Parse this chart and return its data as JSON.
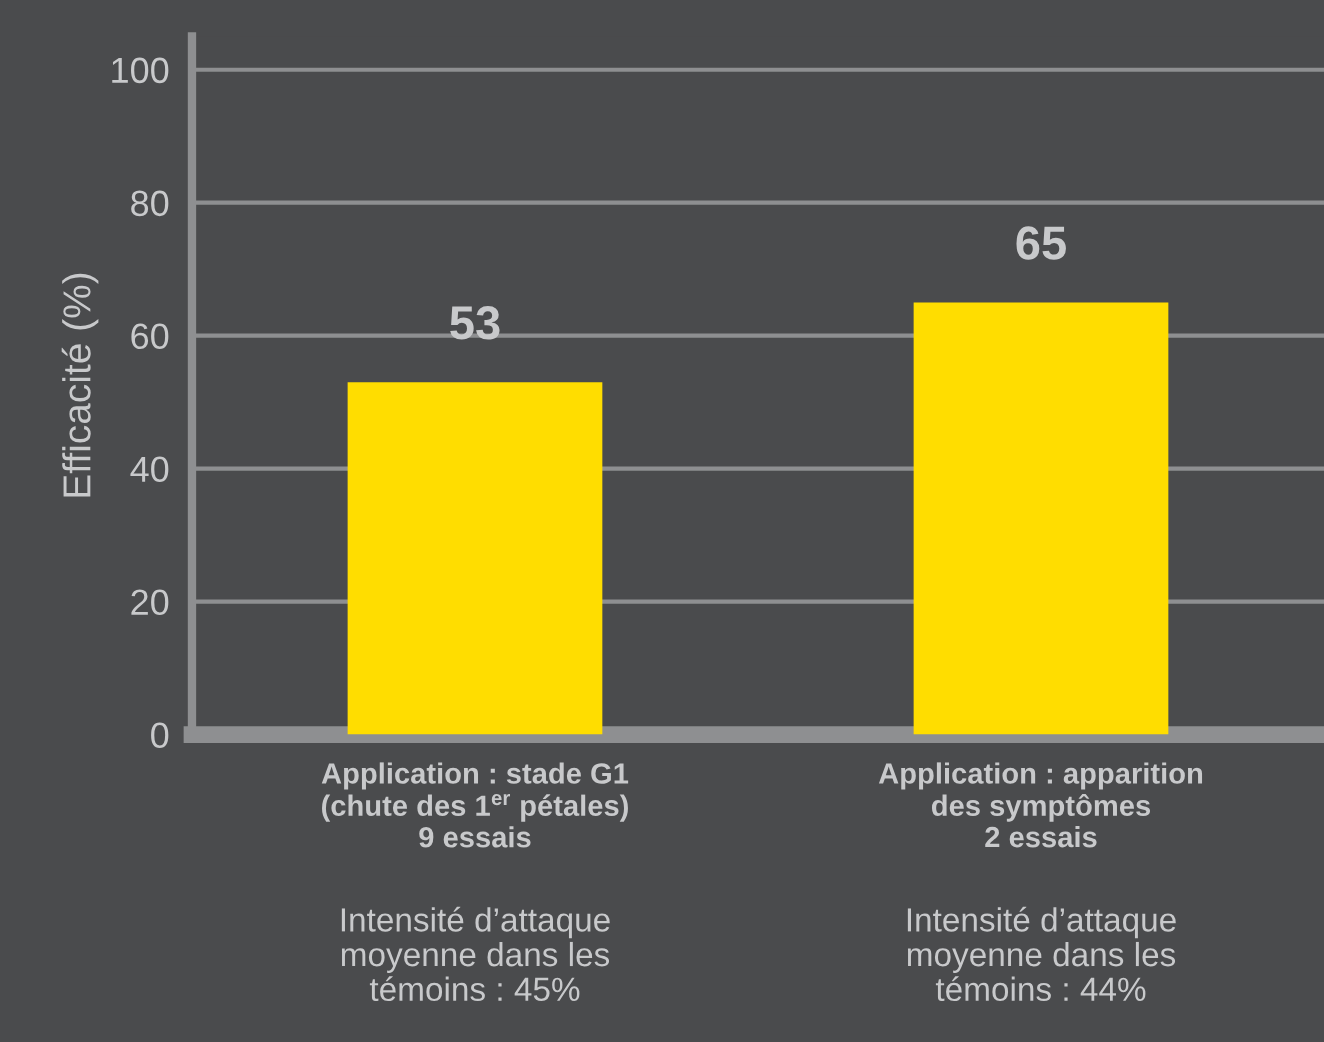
{
  "chart_data": {
    "type": "bar",
    "ylabel": "Efficacité (%)",
    "categories": [
      "Application : stade G1\n(chute des 1$^{er}$ pétales)\n9 essais",
      "Application : apparition\ndes symptômes\n2 essais"
    ],
    "values": [
      53,
      65
    ],
    "color": "#ffdd00",
    "data_labels": true,
    "ylim": [
      0,
      105
    ],
    "yticks": [
      0,
      20,
      40,
      60,
      80,
      100
    ],
    "grid": "y",
    "annotations": [
      "Intensité d’attaque\nmoyenne dans les\ntémoins : 45%",
      "Intensité d’attaque\nmoyenne dans les\ntémoins : 44%"
    ]
  }
}
